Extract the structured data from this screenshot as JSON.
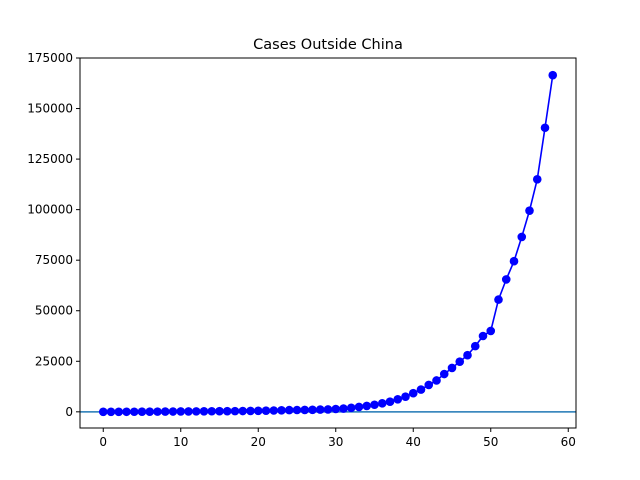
{
  "chart_data": {
    "type": "line",
    "title": "Cases Outside China",
    "xlabel": "",
    "ylabel": "",
    "xlim": [
      -3,
      61
    ],
    "ylim": [
      -8000,
      175000
    ],
    "x_ticks": [
      0,
      10,
      20,
      30,
      40,
      50,
      60
    ],
    "y_ticks": [
      0,
      25000,
      50000,
      75000,
      100000,
      125000,
      150000,
      175000
    ],
    "grid": false,
    "legend": "none",
    "hline": {
      "y": 0,
      "color": "#1f77b4"
    },
    "series": [
      {
        "color": "#0000ff",
        "marker": "circle",
        "x": [
          0,
          1,
          2,
          3,
          4,
          5,
          6,
          7,
          8,
          9,
          10,
          11,
          12,
          13,
          14,
          15,
          16,
          17,
          18,
          19,
          20,
          21,
          22,
          23,
          24,
          25,
          26,
          27,
          28,
          29,
          30,
          31,
          32,
          33,
          34,
          35,
          36,
          37,
          38,
          39,
          40,
          41,
          42,
          43,
          44,
          45,
          46,
          47,
          48,
          49,
          50,
          51,
          52,
          53,
          54,
          55,
          56,
          57,
          58
        ],
        "values": [
          10,
          10,
          20,
          30,
          40,
          60,
          80,
          100,
          120,
          150,
          180,
          200,
          220,
          250,
          280,
          300,
          330,
          350,
          400,
          450,
          500,
          550,
          650,
          750,
          850,
          900,
          950,
          1000,
          1100,
          1200,
          1400,
          1600,
          2000,
          2400,
          2900,
          3500,
          4200,
          5000,
          6200,
          7500,
          9200,
          11000,
          13300,
          15500,
          18700,
          21700,
          24800,
          28000,
          32500,
          37500,
          40000,
          55500,
          65500,
          74500,
          86500,
          99500,
          115000,
          140500,
          166500
        ]
      }
    ]
  }
}
